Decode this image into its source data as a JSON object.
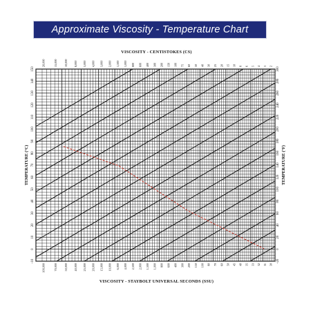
{
  "banner": {
    "title": "Approximate Viscosity - Temperature Chart"
  },
  "chart_data": {
    "type": "line",
    "title": "Approximate Viscosity - Temperature Chart",
    "top_axis_label": "VISCOSITY - CENTISTOKES (CS)",
    "bottom_axis_label": "VISCOSITY - STAYBOLT UNIVERSAL SECONDS (SSU)",
    "left_axis_label": "TEMPERATURE (°C)",
    "right_axis_label": "TEMPERATURE (°F)",
    "celsius_ticks": [
      "150",
      "140",
      "130",
      "120",
      "110",
      "100",
      "90",
      "80",
      "70",
      "60",
      "50",
      "40",
      "30",
      "20",
      "10",
      "0",
      "-10"
    ],
    "fahrenheit_ticks": [
      "300",
      "280",
      "260",
      "240",
      "220",
      "200",
      "180",
      "160",
      "140",
      "120",
      "100",
      "80",
      "60",
      "40",
      "20",
      "0",
      "-20"
    ],
    "cs_ticks": [
      "20,000",
      "15,000",
      "10,000",
      "8,000",
      "5,000",
      "4,000",
      "3,000",
      "2,000",
      "1,500",
      "1,000",
      "800",
      "600",
      "400",
      "300",
      "200",
      "150",
      "100",
      "75",
      "60",
      "50",
      "40",
      "30",
      "25",
      "20",
      "15",
      "10",
      "8",
      "6",
      "5",
      "4",
      "3",
      "2"
    ],
    "ssu_ticks": [
      "100,000",
      "70,000",
      "50,000",
      "40,000",
      "25,000",
      "20,000",
      "15,000",
      "10,000",
      "6,000",
      "4,000",
      "2,500",
      "2,000",
      "1,500",
      "1,000",
      "800",
      "600",
      "400",
      "300",
      "200",
      "150",
      "100",
      "80",
      "70",
      "60",
      "50",
      "45",
      "40",
      "35",
      "33",
      "32",
      "31",
      "30"
    ],
    "ylim_celsius": [
      -10,
      150
    ],
    "ylim_fahrenheit": [
      -20,
      300
    ],
    "grid": true,
    "reference_lines": 18,
    "highlighted_lines": 2,
    "colors": {
      "banner_bg": "#1f2b7a",
      "banner_text": "#ffffff",
      "grid": "#1a1a1a",
      "highlight": "#c0392b"
    }
  }
}
